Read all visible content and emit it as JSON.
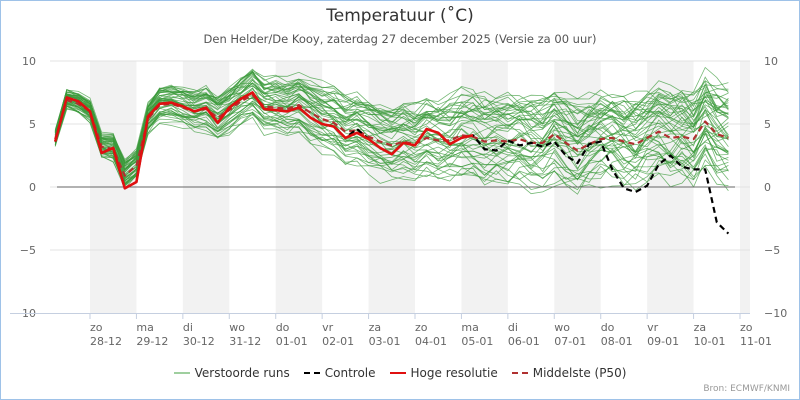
{
  "chart_data": {
    "type": "line",
    "title": "Temperatuur (˚C)",
    "subtitle": "Den Helder/De Kooy, zaterdag 27 december 2025 (Versie za 00 uur)",
    "source": "Bron: ECMWF/KNMI",
    "ylim": [
      -10,
      10
    ],
    "yticks": [
      10,
      5,
      0,
      -5,
      -10
    ],
    "x_unit": "hours since 27-12 00h",
    "x_step_hours": 6,
    "x_start_hours": 6,
    "xlim_hours": [
      0,
      366
    ],
    "day_ticks": [
      {
        "day": "zo",
        "date": "28-12",
        "hours": 24
      },
      {
        "day": "ma",
        "date": "29-12",
        "hours": 48
      },
      {
        "day": "di",
        "date": "30-12",
        "hours": 72
      },
      {
        "day": "wo",
        "date": "31-12",
        "hours": 96
      },
      {
        "day": "do",
        "date": "01-01",
        "hours": 120
      },
      {
        "day": "vr",
        "date": "02-01",
        "hours": 144
      },
      {
        "day": "za",
        "date": "03-01",
        "hours": 168
      },
      {
        "day": "zo",
        "date": "04-01",
        "hours": 192
      },
      {
        "day": "ma",
        "date": "05-01",
        "hours": 216
      },
      {
        "day": "di",
        "date": "06-01",
        "hours": 240
      },
      {
        "day": "wo",
        "date": "07-01",
        "hours": 264
      },
      {
        "day": "do",
        "date": "08-01",
        "hours": 288
      },
      {
        "day": "vr",
        "date": "09-01",
        "hours": 312
      },
      {
        "day": "za",
        "date": "10-01",
        "hours": 336
      },
      {
        "day": "zo",
        "date": "11-01",
        "hours": 360
      }
    ],
    "shaded_days_hours": [
      [
        24,
        48
      ],
      [
        72,
        96
      ],
      [
        120,
        144
      ],
      [
        168,
        192
      ],
      [
        216,
        240
      ],
      [
        264,
        288
      ],
      [
        312,
        336
      ],
      [
        360,
        366
      ]
    ],
    "series": [
      {
        "name": "Verstoorde runs",
        "color": "#3a9a3a",
        "style": "solid-thin",
        "members": 50,
        "note_spread_start": 0.6,
        "note_spread_end": 3.2
      },
      {
        "name": "Controle",
        "color": "#000000",
        "style": "dashed",
        "values": [
          3.6,
          7.1,
          6.8,
          6.0,
          2.7,
          3.1,
          -0.1,
          0.4,
          5.6,
          6.6,
          6.7,
          6.4,
          6.0,
          6.3,
          5.1,
          6.3,
          7.0,
          7.5,
          6.2,
          6.1,
          6.0,
          6.3,
          5.5,
          5.0,
          4.8,
          3.9,
          4.6,
          3.8,
          3.1,
          2.6,
          3.5,
          3.3,
          4.6,
          4.3,
          3.4,
          3.9,
          4.1,
          3.0,
          2.9,
          3.7,
          3.3,
          3.5,
          3.2,
          3.6,
          2.5,
          1.9,
          3.4,
          3.6,
          1.4,
          -0.1,
          -0.4,
          0.1,
          1.8,
          2.5,
          1.6,
          1.4,
          1.4,
          -2.8,
          -3.7
        ]
      },
      {
        "name": "Hoge resolutie",
        "color": "#e01010",
        "style": "solid-thick",
        "values": [
          3.6,
          7.1,
          6.8,
          6.0,
          2.7,
          3.1,
          -0.1,
          0.4,
          5.6,
          6.6,
          6.7,
          6.4,
          6.0,
          6.3,
          5.1,
          6.3,
          7.0,
          7.5,
          6.2,
          6.1,
          6.0,
          6.3,
          5.5,
          5.0,
          4.8,
          3.9,
          4.3,
          3.8,
          3.1,
          2.6,
          3.5,
          3.3,
          4.6,
          4.3,
          3.4,
          3.9,
          4.1
        ]
      },
      {
        "name": "Middelste (P50)",
        "color": "#b03030",
        "style": "dashed",
        "values": [
          3.8,
          6.9,
          6.6,
          6.0,
          3.2,
          3.0,
          0.9,
          1.7,
          5.4,
          6.5,
          6.6,
          6.3,
          6.0,
          6.2,
          5.5,
          6.1,
          6.8,
          7.3,
          6.4,
          6.3,
          6.2,
          6.5,
          5.9,
          5.4,
          5.1,
          4.4,
          4.5,
          4.0,
          3.6,
          3.3,
          3.6,
          3.4,
          3.9,
          3.7,
          3.7,
          4.1,
          4.0,
          3.6,
          3.7,
          3.6,
          3.8,
          3.5,
          3.5,
          4.2,
          3.5,
          2.9,
          3.4,
          3.8,
          3.9,
          3.6,
          3.4,
          3.9,
          4.4,
          3.9,
          4.0,
          3.8,
          5.2,
          4.2,
          3.9
        ]
      }
    ],
    "legend": {
      "placement": "bottom",
      "entries": [
        "Verstoorde runs",
        "Controle",
        "Hoge resolutie",
        "Middelste (P50)"
      ]
    }
  }
}
